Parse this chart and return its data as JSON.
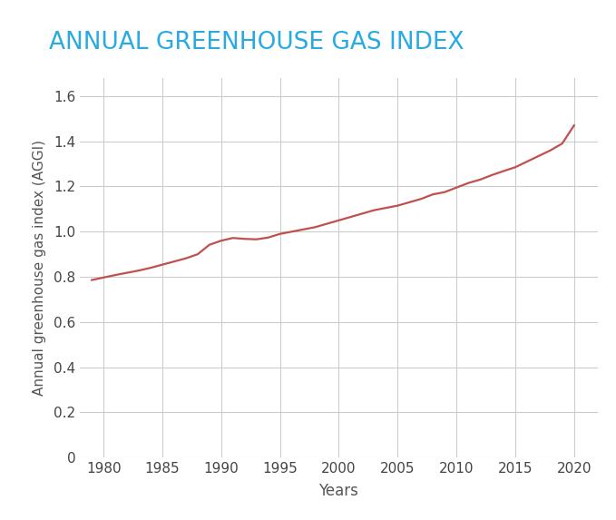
{
  "title": "ANNUAL GREENHOUSE GAS INDEX",
  "title_color": "#29ABE2",
  "xlabel": "Years",
  "ylabel": "Annual greenhouse gas index (AGGI)",
  "line_color": "#C0504D",
  "background_color": "#ffffff",
  "grid_color": "#cccccc",
  "xlim": [
    1978,
    2022
  ],
  "ylim": [
    0,
    1.68
  ],
  "xticks": [
    1980,
    1985,
    1990,
    1995,
    2000,
    2005,
    2010,
    2015,
    2020
  ],
  "yticks": [
    0,
    0.2,
    0.4,
    0.6,
    0.8,
    1.0,
    1.2,
    1.4,
    1.6
  ],
  "years": [
    1979,
    1980,
    1981,
    1982,
    1983,
    1984,
    1985,
    1986,
    1987,
    1988,
    1989,
    1990,
    1991,
    1992,
    1993,
    1994,
    1995,
    1996,
    1997,
    1998,
    1999,
    2000,
    2001,
    2002,
    2003,
    2004,
    2005,
    2006,
    2007,
    2008,
    2009,
    2010,
    2011,
    2012,
    2013,
    2014,
    2015,
    2016,
    2017,
    2018,
    2019,
    2020
  ],
  "aggi": [
    0.786,
    0.797,
    0.808,
    0.818,
    0.828,
    0.84,
    0.854,
    0.868,
    0.882,
    0.9,
    0.942,
    0.96,
    0.972,
    0.968,
    0.966,
    0.974,
    0.99,
    1.0,
    1.01,
    1.02,
    1.035,
    1.05,
    1.065,
    1.08,
    1.095,
    1.105,
    1.115,
    1.13,
    1.145,
    1.165,
    1.175,
    1.195,
    1.215,
    1.23,
    1.25,
    1.268,
    1.285,
    1.31,
    1.335,
    1.36,
    1.39,
    1.47
  ],
  "title_fontsize": 19,
  "tick_fontsize": 11,
  "label_fontsize": 12,
  "line_width": 1.6
}
